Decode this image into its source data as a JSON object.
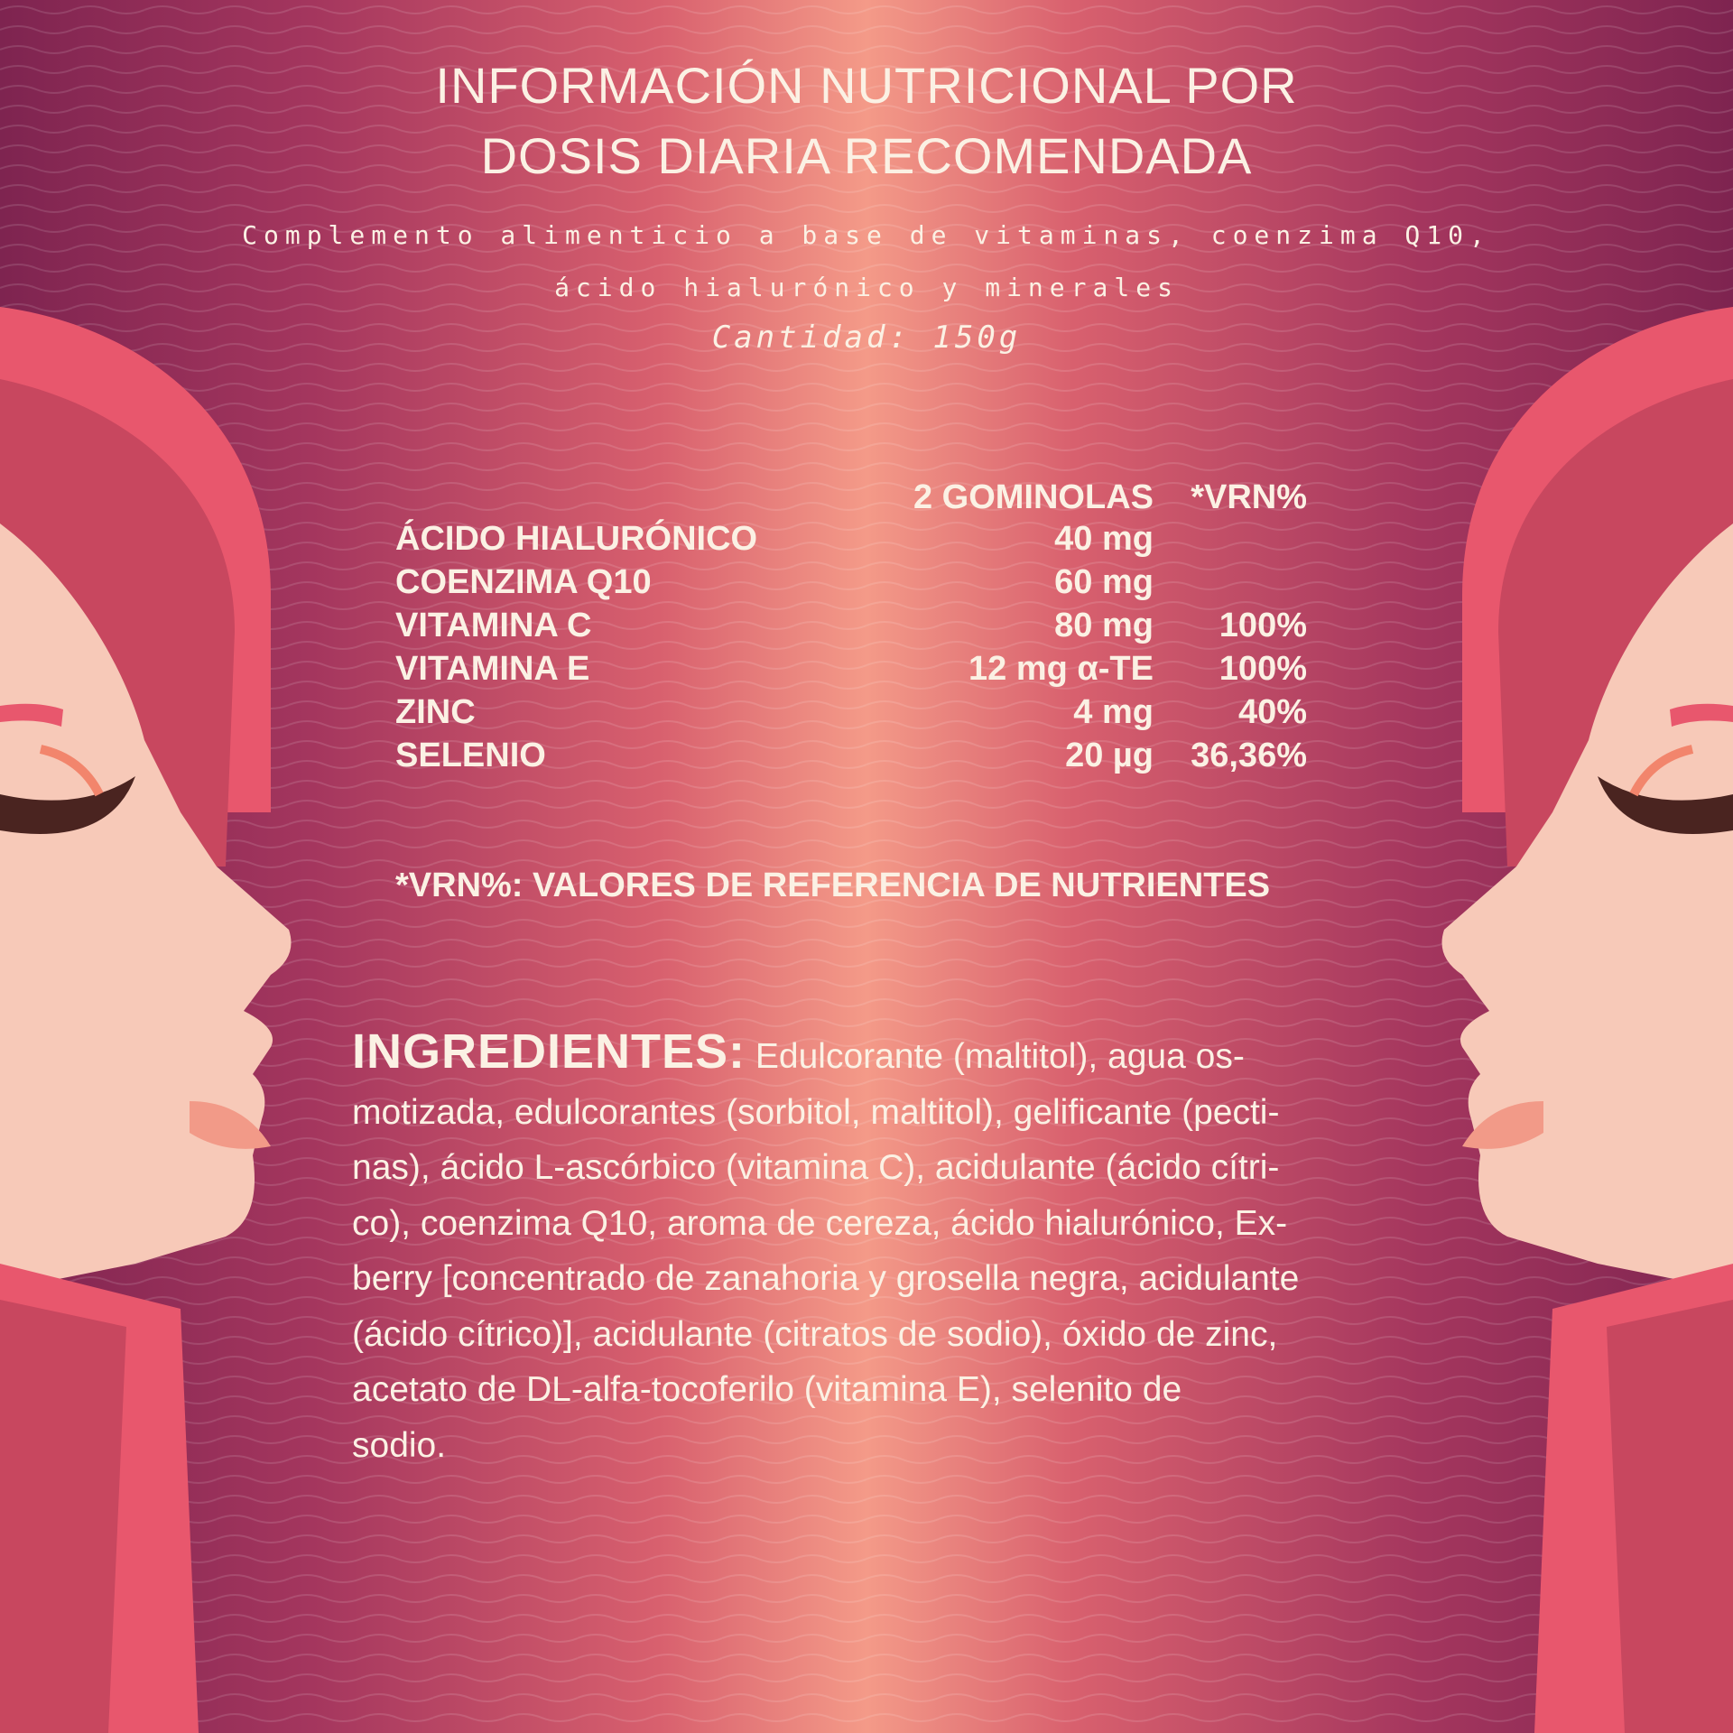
{
  "title": {
    "line1": "INFORMACIÓN NUTRICIONAL POR",
    "line2": "DOSIS DIARIA RECOMENDADA"
  },
  "subtitle": {
    "line1": "Complemento alimenticio a base de vitaminas, coenzima Q10,",
    "line2": "ácido hialurónico y minerales"
  },
  "quantity": "Cantidad: 150g",
  "table": {
    "headers": [
      "",
      "2 GOMINOLAS",
      "*VRN%"
    ],
    "rows": [
      {
        "name": "ÁCIDO HIALURÓNICO",
        "amount": "40 mg",
        "vrn": ""
      },
      {
        "name": "COENZIMA Q10",
        "amount": "60 mg",
        "vrn": ""
      },
      {
        "name": "VITAMINA C",
        "amount": "80 mg",
        "vrn": "100%"
      },
      {
        "name": "VITAMINA E",
        "amount": "12 mg α-TE",
        "vrn": "100%"
      },
      {
        "name": "ZINC",
        "amount": "4 mg",
        "vrn": "40%"
      },
      {
        "name": "SELENIO",
        "amount": "20 µg",
        "vrn": "36,36%"
      }
    ]
  },
  "footnote": "*VRN%: VALORES DE REFERENCIA DE NUTRIENTES",
  "ingredients": {
    "label": "INGREDIENTES:",
    "lines": [
      " Edulcorante (maltitol), agua os-",
      "motizada, edulcorantes (sorbitol, maltitol), gelificante (pecti-",
      "nas), ácido L-ascórbico (vitamina C), acidulante (ácido cítri-",
      "co), coenzima Q10,  aroma de cereza, ácido hialurónico, Ex-",
      "berry  [concentrado de zanahoria y grosella negra, acidulante",
      "(ácido cítrico)], acidulante (citratos de sodio), óxido de zinc,",
      "acetato de DL-alfa-tocoferilo (vitamina E),  selenito de",
      "sodio."
    ]
  },
  "colors": {
    "text": "#fbf1e4",
    "edge": "#7e2450",
    "center": "#f49a88",
    "hair": "#e8576d",
    "hair_dark": "#c8475f",
    "skin": "#f7c9b8"
  }
}
